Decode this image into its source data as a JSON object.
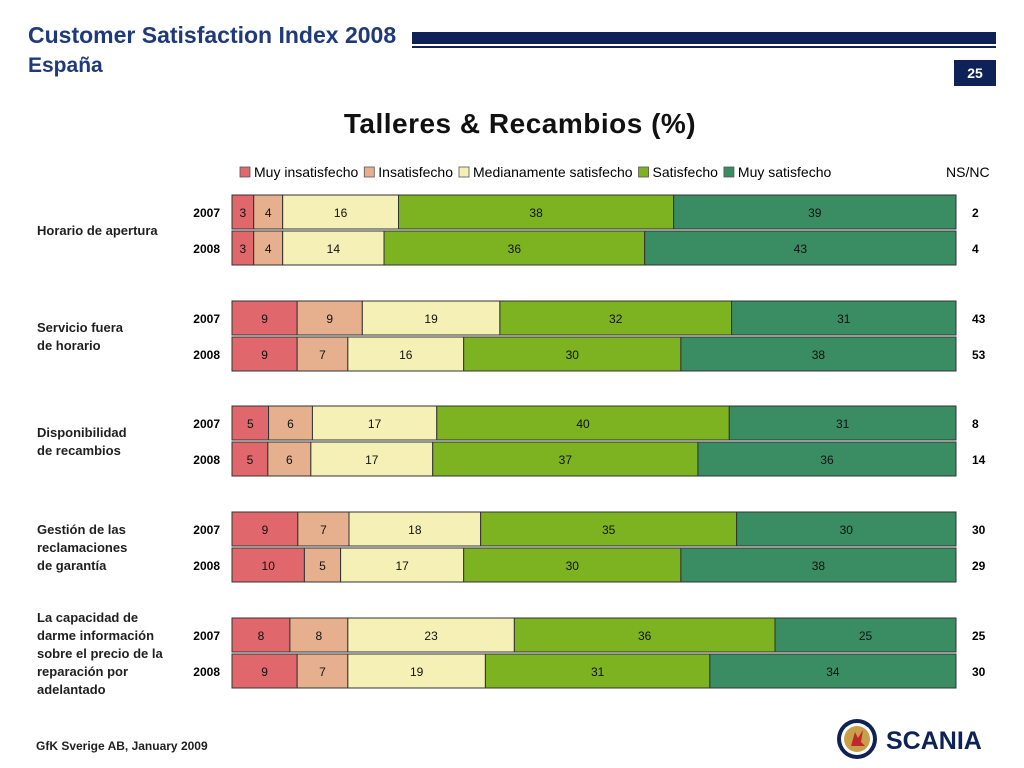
{
  "header": {
    "title": "Customer Satisfaction Index 2008",
    "subtitle": "España",
    "page_number": "25"
  },
  "footer": {
    "source": "GfK Sverige AB, January 2009"
  },
  "logo": {
    "text": "SCANIA",
    "icon": "scania-griffin-icon"
  },
  "colors": {
    "brand_navy": "#0f2257",
    "title_blue": "#1f3a7a",
    "muy_insatisfecho": "#e0686c",
    "insatisfecho": "#e6b08e",
    "medianamente": "#f5f0b6",
    "satisfecho": "#7db221",
    "muy_satisfecho": "#3a8c63"
  },
  "chart_data": {
    "type": "bar",
    "orientation": "horizontal",
    "stacked": true,
    "title": "Talleres & Recambios (%)",
    "legend": [
      "Muy insatisfecho",
      "Insatisfecho",
      "Medianamente satisfecho",
      "Satisfecho",
      "Muy satisfecho"
    ],
    "extra_column_label": "NS/NC",
    "groups": [
      {
        "label": [
          "Horario de apertura"
        ],
        "rows": [
          {
            "year": "2007",
            "values": [
              3,
              4,
              16,
              38,
              39
            ],
            "nsnc": "2"
          },
          {
            "year": "2008",
            "values": [
              3,
              4,
              14,
              36,
              43
            ],
            "nsnc": "4"
          }
        ]
      },
      {
        "label": [
          "Servicio fuera",
          "de horario"
        ],
        "rows": [
          {
            "year": "2007",
            "values": [
              9,
              9,
              19,
              32,
              31
            ],
            "nsnc": "43"
          },
          {
            "year": "2008",
            "values": [
              9,
              7,
              16,
              30,
              38
            ],
            "nsnc": "53"
          }
        ]
      },
      {
        "label": [
          "Disponibilidad",
          "de recambios"
        ],
        "rows": [
          {
            "year": "2007",
            "values": [
              5,
              6,
              17,
              40,
              31
            ],
            "nsnc": "8"
          },
          {
            "year": "2008",
            "values": [
              5,
              6,
              17,
              37,
              36
            ],
            "nsnc": "14"
          }
        ]
      },
      {
        "label": [
          "Gestión de las",
          "reclamaciones",
          "de garantía"
        ],
        "rows": [
          {
            "year": "2007",
            "values": [
              9,
              7,
              18,
              35,
              30
            ],
            "nsnc": "30"
          },
          {
            "year": "2008",
            "values": [
              10,
              5,
              17,
              30,
              38
            ],
            "nsnc": "29"
          }
        ]
      },
      {
        "label": [
          "La capacidad de",
          "darme información",
          "sobre el precio de la",
          "reparación por",
          "adelantado"
        ],
        "rows": [
          {
            "year": "2007",
            "values": [
              8,
              8,
              23,
              36,
              25
            ],
            "nsnc": "25"
          },
          {
            "year": "2008",
            "values": [
              9,
              7,
              19,
              31,
              34
            ],
            "nsnc": "30"
          }
        ]
      }
    ]
  }
}
